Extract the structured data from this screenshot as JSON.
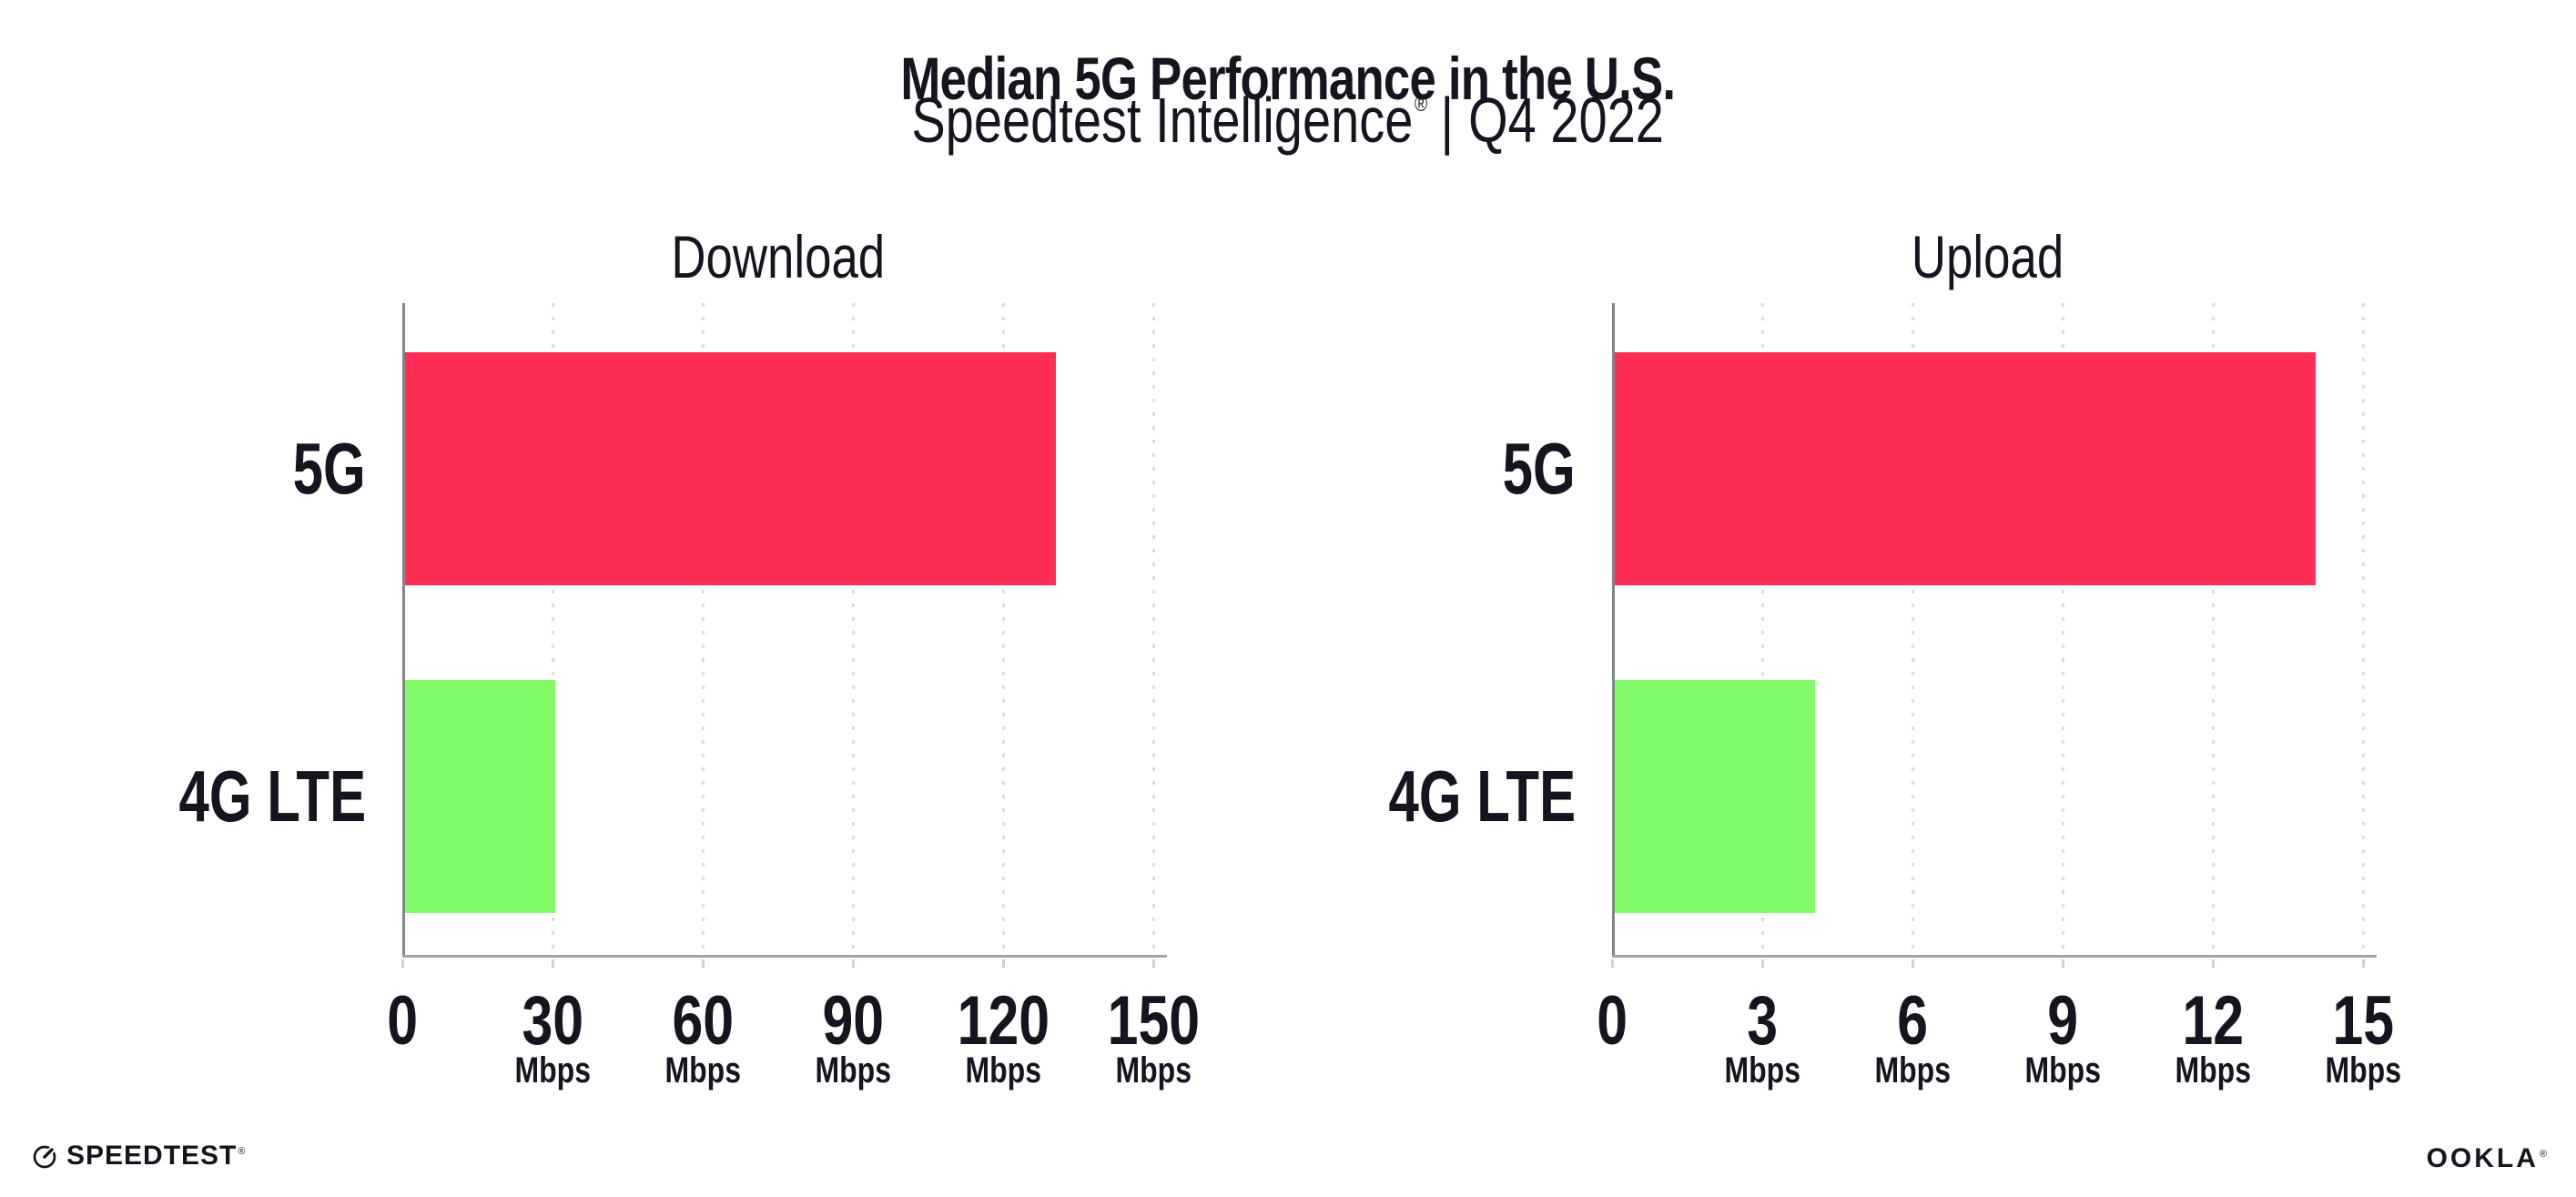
{
  "header": {
    "title": "Median 5G Performance in the U.S.",
    "subtitle": {
      "brand": "Speedtest Intelligence",
      "registered": "®",
      "separator": "|",
      "period": "Q4 2022"
    }
  },
  "chart_data": [
    {
      "type": "bar",
      "orientation": "horizontal",
      "title": "Download",
      "unit": "Mbps",
      "categories": [
        "5G",
        "4G LTE"
      ],
      "values": [
        130,
        30
      ],
      "colors": [
        "#FE2D55",
        "#80FA66"
      ],
      "xlim": [
        0,
        150
      ],
      "ticks": [
        0,
        30,
        60,
        90,
        120,
        150
      ],
      "grid": "dotted-vertical",
      "legend": "none"
    },
    {
      "type": "bar",
      "orientation": "horizontal",
      "title": "Upload",
      "unit": "Mbps",
      "categories": [
        "5G",
        "4G LTE"
      ],
      "values": [
        14,
        4
      ],
      "colors": [
        "#FE2D55",
        "#80FA66"
      ],
      "xlim": [
        0,
        15
      ],
      "ticks": [
        0,
        3,
        6,
        9,
        12,
        15
      ],
      "grid": "dotted-vertical",
      "legend": "none"
    }
  ],
  "footer": {
    "speedtest_label": "SPEEDTEST",
    "speedtest_mark": "®",
    "speedtest_icon": "speedtest-gauge-icon",
    "ookla_label": "OOKLA",
    "ookla_mark": "®"
  },
  "colors": {
    "bar_5g": "#FE2D55",
    "bar_4g_lte": "#80FA66",
    "axis_y": "#84858B",
    "axis_x": "#A2A2A8",
    "gridline": "#DCDCE6",
    "text": "#15151F"
  }
}
